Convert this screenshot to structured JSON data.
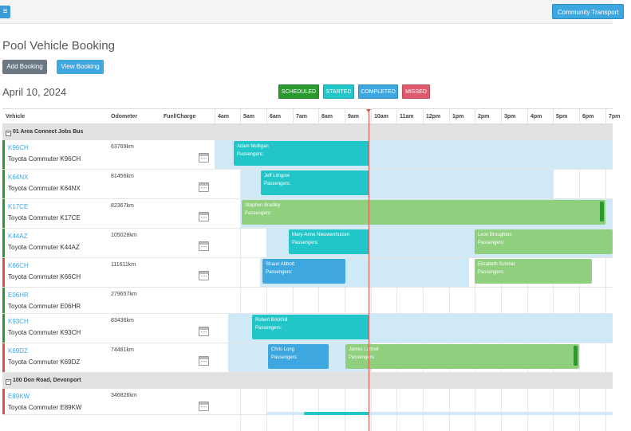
{
  "topbar": {
    "menu_icon": "≡",
    "community_label": "Community Transport"
  },
  "page": {
    "title": "Pool Vehicle Booking",
    "date": "April 10, 2024"
  },
  "actions": {
    "add_label": "Add Booking",
    "view_label": "View Booking"
  },
  "legend": {
    "scheduled": "SCHEDULED",
    "started": "STARTED",
    "completed": "COMPLETED",
    "missed": "MISSED"
  },
  "columns": {
    "vehicle": "Vehicle",
    "odometer": "Odometer",
    "fuel": "Fuel/Charge"
  },
  "hours": [
    "4am",
    "5am",
    "6am",
    "7am",
    "8am",
    "9am",
    "10am",
    "11am",
    "12pm",
    "1pm",
    "2pm",
    "3pm",
    "4pm",
    "5pm",
    "6pm",
    "7pm"
  ],
  "groups": [
    {
      "name": "01 Area Connect Jobs Bus",
      "toggle": "−"
    },
    {
      "name": "100 Don Road, Devonport",
      "toggle": "−"
    }
  ],
  "vehicles": [
    {
      "reg": "K96CH",
      "model": "Toyota Commuter K96CH",
      "odometer": "63769km",
      "status_color": "#2a9a2f"
    },
    {
      "reg": "K64NX",
      "model": "Toyota Commuter K64NX",
      "odometer": "81456km",
      "status_color": "#2a9a2f"
    },
    {
      "reg": "K17CE",
      "model": "Toyota Commuter K17CE",
      "odometer": "82367km",
      "status_color": "#2a9a2f"
    },
    {
      "reg": "K44AZ",
      "model": "Toyota Commuter K44AZ",
      "odometer": "105028km",
      "status_color": "#2a9a2f"
    },
    {
      "reg": "K66CH",
      "model": "Toyota Commuter K66CH",
      "odometer": "111611km",
      "status_color": "#d9534f"
    },
    {
      "reg": "E06HR",
      "model": "Toyota Commuter E06HR",
      "odometer": "279657km",
      "status_color": "#2a9a2f"
    },
    {
      "reg": "K93CH",
      "model": "Toyota Commuter K93CH",
      "odometer": "83436km",
      "status_color": "#2a9a2f"
    },
    {
      "reg": "K69DZ",
      "model": "Toyota Commuter K69DZ",
      "odometer": "74481km",
      "status_color": "#d9534f"
    },
    {
      "reg": "E89KW",
      "model": "Toyota Commuter E89KW",
      "odometer": "346826km",
      "status_color": "#d9534f"
    }
  ],
  "bookings": [
    {
      "name": "Adam Mulligan",
      "passengers": "Passengers:",
      "status": "started"
    },
    {
      "name": "Jeff Lithgow",
      "passengers": "Passengers:",
      "status": "started"
    },
    {
      "name": "Stephen Bradley",
      "passengers": "Passengers:",
      "status": "scheduled"
    },
    {
      "name": "Mary-Anne Nieuwenhuizen",
      "passengers": "Passengers:",
      "status": "started"
    },
    {
      "name": "Leon Broughton",
      "passengers": "Passengers:",
      "status": "scheduled"
    },
    {
      "name": "Shaun Abbott",
      "passengers": "Passengers:",
      "status": "completed"
    },
    {
      "name": "Elizabeth Schmid",
      "passengers": "Passengers:",
      "status": "scheduled"
    },
    {
      "name": "Robert Brickhill",
      "passengers": "Passengers:",
      "status": "started"
    },
    {
      "name": "Chris Long",
      "passengers": "Passengers:",
      "status": "completed"
    },
    {
      "name": "James Luttrell",
      "passengers": "Passengers:",
      "status": "scheduled"
    }
  ]
}
